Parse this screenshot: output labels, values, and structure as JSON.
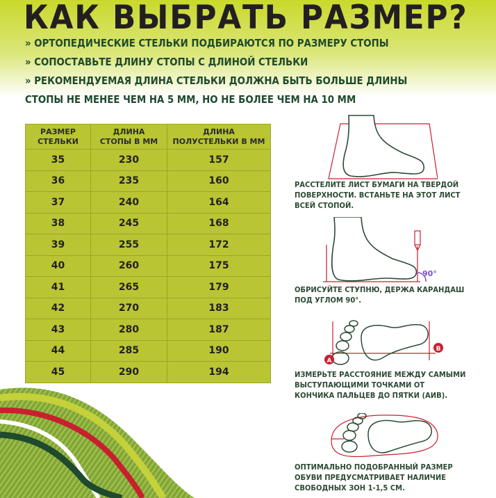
{
  "title": "КАК ВЫБРАТЬ РАЗМЕР?",
  "bullets": [
    "» ОРТОПЕДИЧЕСКИЕ СТЕЛЬКИ ПОДБИРАЮТСЯ ПО РАЗМЕРУ СТОПЫ",
    "» СОПОСТАВЬТЕ ДЛИНУ СТОПЫ С ДЛИНОЙ СТЕЛЬКИ",
    "» РЕКОМЕНДУЕМАЯ ДЛИНА СТЕЛЬКИ ДОЛЖНА БЫТЬ БОЛЬШЕ ДЛИНЫ",
    "СТОПЫ НЕ МЕНЕЕ ЧЕМ НА 5 ММ, НО НЕ БОЛЕЕ ЧЕМ НА 10 ММ"
  ],
  "table": {
    "headers": [
      [
        "РАЗМЕР",
        "СТЕЛЬКИ"
      ],
      [
        "ДЛИНА",
        "СТОПЫ В ММ"
      ],
      [
        "ДЛИНА",
        "ПОЛУСТЕЛЬКИ В ММ"
      ]
    ],
    "rows": [
      [
        "35",
        "230",
        "157"
      ],
      [
        "36",
        "235",
        "160"
      ],
      [
        "37",
        "240",
        "164"
      ],
      [
        "38",
        "245",
        "168"
      ],
      [
        "39",
        "255",
        "172"
      ],
      [
        "40",
        "260",
        "175"
      ],
      [
        "41",
        "265",
        "179"
      ],
      [
        "42",
        "270",
        "183"
      ],
      [
        "43",
        "280",
        "187"
      ],
      [
        "44",
        "285",
        "190"
      ],
      [
        "45",
        "290",
        "194"
      ]
    ]
  },
  "steps": [
    [
      "РАССТЕЛИТЕ ЛИСТ БУМАГИ НА ТВЕРДОЙ",
      "ПОВЕРХНОСТИ. ВСТАНЬТЕ НА ЭТОТ ЛИСТ",
      "ВСЕЙ СТОПОЙ."
    ],
    [
      "ОБРИСУЙТЕ СТУПНЮ, ДЕРЖА КАРАНДАШ",
      "ПОД УГЛОМ 90°."
    ],
    [
      "ИЗМЕРЬТЕ РАССТОЯНИЕ МЕЖДУ САМЫМИ",
      "ВЫСТУПАЮЩИМИ ТОЧКАМИ ОТ",
      "КОНЧИКА ПАЛЬЦЕВ ДО ПЯТКИ (АИВ)."
    ],
    [
      "ОПТИМАЛЬНО ПОДОБРАННЫЙ РАЗМЕР",
      "ОБУВИ ПРЕДУСМАТРИВАЕТ НАЛИЧИЕ",
      "СВОБОДНЫХ ЗОН 1-1,5 СМ."
    ]
  ],
  "labels": {
    "angle": "90°",
    "point_a": "A",
    "point_b": "B"
  },
  "colors": {
    "lime": "#b9c532",
    "dark_green": "#1f4a2e",
    "red": "#c8202f",
    "text": "#231f20"
  }
}
